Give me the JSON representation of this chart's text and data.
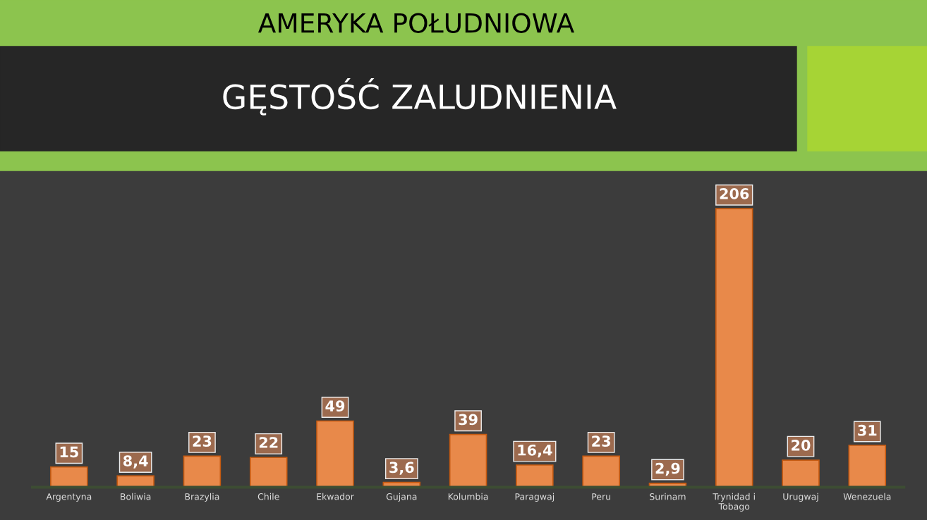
{
  "chart_data": {
    "type": "bar",
    "subtitle": "AMERYKA POŁUDNIOWA",
    "title": "GĘSTOŚĆ ZALUDNIENIA",
    "categories": [
      "Argentyna",
      "Boliwia",
      "Brazylia",
      "Chile",
      "Ekwador",
      "Gujana",
      "Kolumbia",
      "Paragwaj",
      "Peru",
      "Surinam",
      "Trynidad i Tobago",
      "Urugwaj",
      "Wenezuela"
    ],
    "values": [
      15,
      8.4,
      23,
      22,
      49,
      3.6,
      39,
      16.4,
      23,
      2.9,
      206,
      20,
      31
    ],
    "value_labels": [
      "15",
      "8,4",
      "23",
      "22",
      "49",
      "3,6",
      "39",
      "16,4",
      "23",
      "2,9",
      "206",
      "20",
      "31"
    ],
    "color": "#e8894a",
    "grid": false,
    "legend": false
  }
}
